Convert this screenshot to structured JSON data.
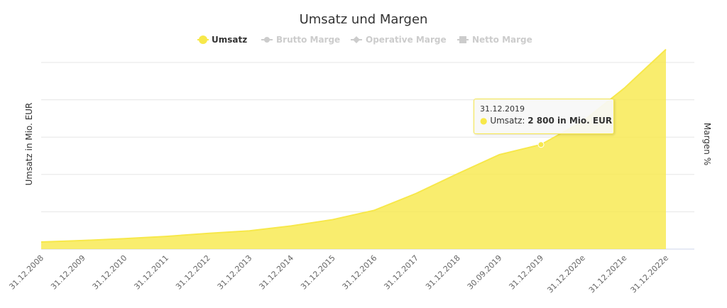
{
  "chart_data": {
    "type": "area",
    "title": "Umsatz und Margen",
    "ylabel": "Umsatz in Mio. EUR",
    "ylabel_right": "Margen %",
    "ylim": [
      0,
      5000
    ],
    "grid": true,
    "legend_placement": "top",
    "legend": [
      {
        "name": "Umsatz",
        "active": true,
        "color": "#f7e84a",
        "symbol": "circle"
      },
      {
        "name": "Brutto Marge",
        "active": false,
        "color": "#cccccc",
        "symbol": "circle"
      },
      {
        "name": "Operative Marge",
        "active": false,
        "color": "#cccccc",
        "symbol": "diamond"
      },
      {
        "name": "Netto Marge",
        "active": false,
        "color": "#cccccc",
        "symbol": "square"
      }
    ],
    "categories": [
      "31.12.2008",
      "31.12.2009",
      "31.12.2010",
      "31.12.2011",
      "31.12.2012",
      "31.12.2013",
      "31.12.2014",
      "31.12.2015",
      "31.12.2016",
      "31.12.2017",
      "31.12.2018",
      "30.09.2019",
      "31.12.2019",
      "31.12.2020e",
      "31.12.2021e",
      "31.12.2022e"
    ],
    "series": [
      {
        "name": "Umsatz",
        "color": "#f7e84a",
        "values": [
          190,
          230,
          280,
          340,
          420,
          490,
          620,
          790,
          1040,
          1490,
          2020,
          2530,
          2800,
          3420,
          4310,
          5350
        ]
      }
    ],
    "tooltip": {
      "date": "31.12.2019",
      "series": "Umsatz",
      "value": "2 800 in Mio. EUR",
      "index": 12
    }
  }
}
